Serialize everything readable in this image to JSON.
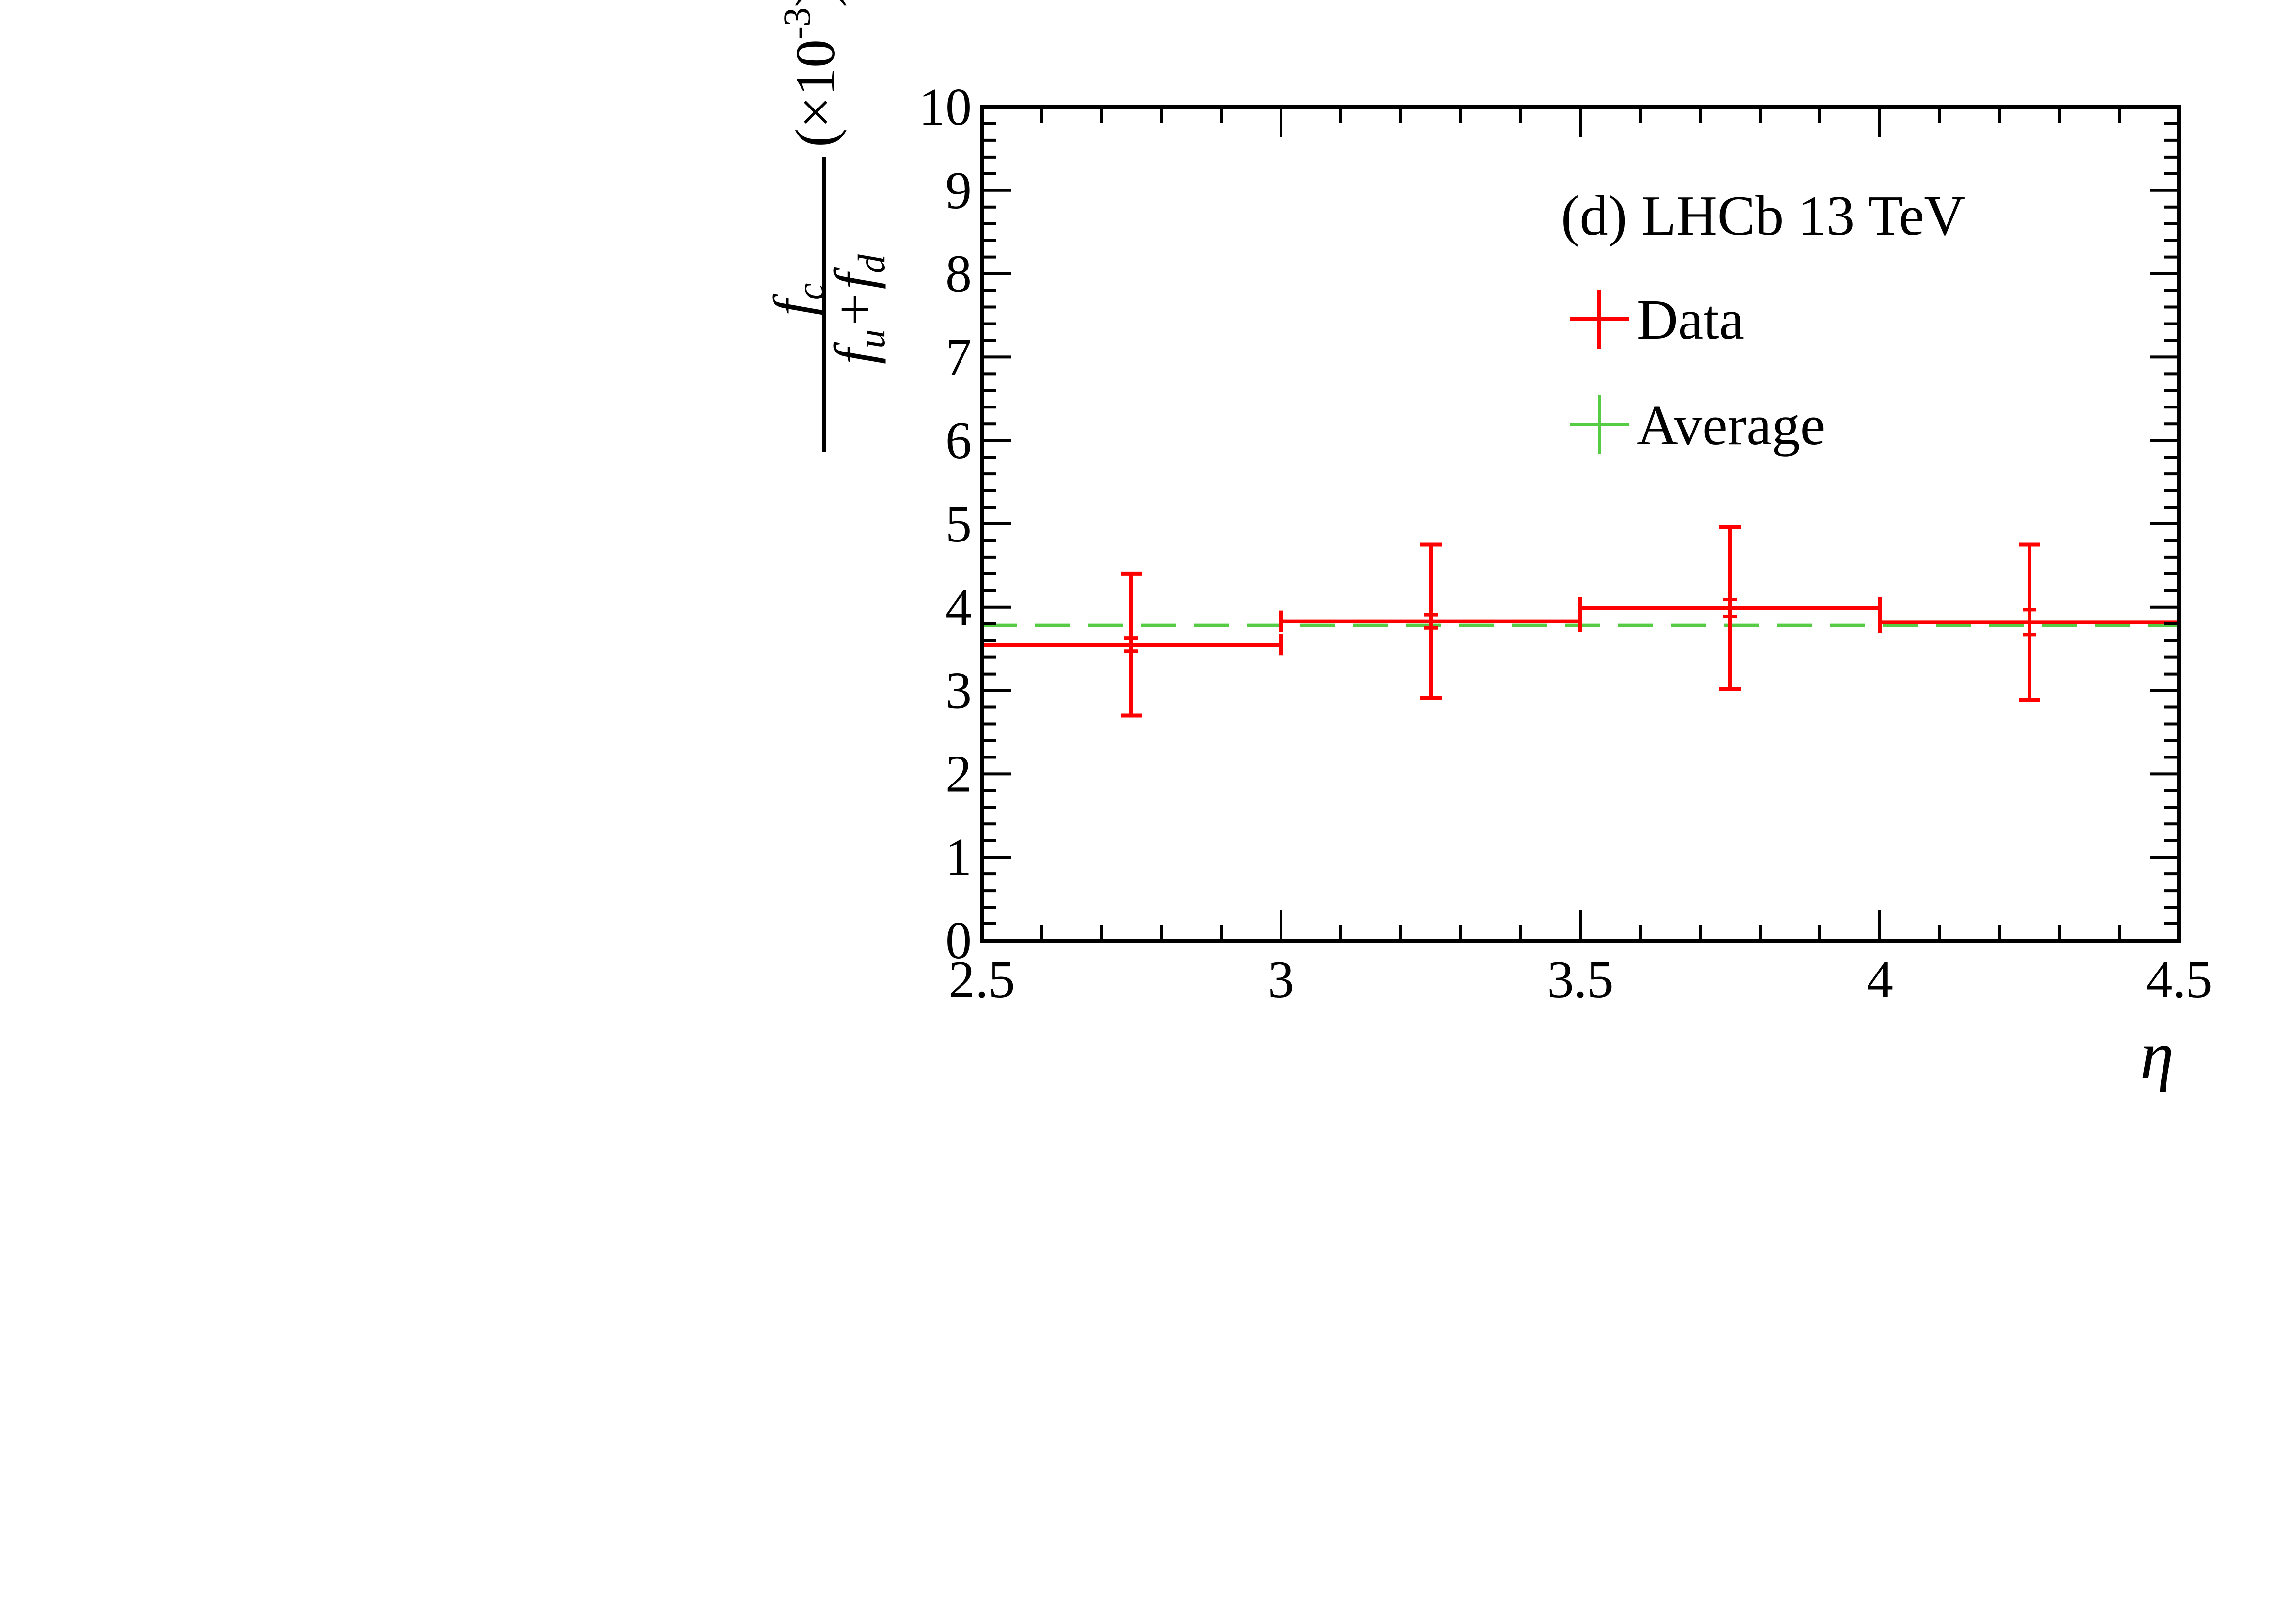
{
  "chart_data": {
    "type": "line",
    "title": "",
    "xlabel": "η",
    "ylabel": {
      "numerator": "f",
      "numerator_sub": "c",
      "denominator_a": "f",
      "denominator_a_sub": "u",
      "plus": "+",
      "denominator_b": "f",
      "denominator_b_sub": "d",
      "scale_prefix": "(×10",
      "scale_exp": "-3",
      "scale_suffix": ")"
    },
    "xlim": [
      2.5,
      4.5
    ],
    "ylim": [
      0,
      10
    ],
    "x_ticks": [
      "2.5",
      "3",
      "3.5",
      "4",
      "4.5"
    ],
    "x_tick_values": [
      2.5,
      3,
      3.5,
      4,
      4.5
    ],
    "y_ticks": [
      "0",
      "1",
      "2",
      "3",
      "4",
      "5",
      "6",
      "7",
      "8",
      "9",
      "10"
    ],
    "y_tick_values": [
      0,
      1,
      2,
      3,
      4,
      5,
      6,
      7,
      8,
      9,
      10
    ],
    "annotation": "(d) LHCb 13 TeV",
    "legend_position": "top-right",
    "series": [
      {
        "name": "Data",
        "color": "#ff0000",
        "style": "step-with-errors",
        "bins": [
          {
            "x_low": 2.5,
            "x_high": 3.0,
            "x_center": 2.75,
            "y": 3.55,
            "stat_err": 0.08,
            "total_err_low": 0.85,
            "total_err_high": 0.85
          },
          {
            "x_low": 3.0,
            "x_high": 3.5,
            "x_center": 3.25,
            "y": 3.83,
            "stat_err": 0.08,
            "total_err_low": 0.92,
            "total_err_high": 0.92
          },
          {
            "x_low": 3.5,
            "x_high": 4.0,
            "x_center": 3.75,
            "y": 3.99,
            "stat_err": 0.1,
            "total_err_low": 0.97,
            "total_err_high": 0.97
          },
          {
            "x_low": 4.0,
            "x_high": 4.5,
            "x_center": 4.25,
            "y": 3.82,
            "stat_err": 0.15,
            "total_err_low": 0.93,
            "total_err_high": 0.93
          }
        ]
      },
      {
        "name": "Average",
        "color": "#55cc44",
        "style": "dashed",
        "y": 3.78
      }
    ]
  }
}
